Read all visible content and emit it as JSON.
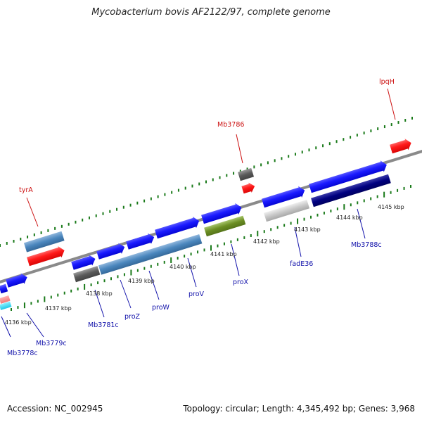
{
  "title": "Mycobacterium bovis AF2122/97, complete genome",
  "footer": {
    "accession": "Accession: NC_002945",
    "summary": "Topology: circular; Length: 4,345,492 bp; Genes: 3,968"
  },
  "colors": {
    "backbone": "#888888",
    "tick": "#1a7a1a",
    "label_red": "#cc1111",
    "label_blue": "#1111aa"
  },
  "axis": {
    "unit": "kbp",
    "ticks": [
      4136,
      4137,
      4138,
      4139,
      4140,
      4141,
      4142,
      4143,
      4144,
      4145
    ]
  },
  "labels": [
    {
      "text": "tyrA",
      "color": "red"
    },
    {
      "text": "Mb3786",
      "color": "red"
    },
    {
      "text": "lpqH",
      "color": "red"
    },
    {
      "text": "Mb3778c",
      "color": "blue"
    },
    {
      "text": "Mb3779c",
      "color": "blue"
    },
    {
      "text": "Mb3781c",
      "color": "blue"
    },
    {
      "text": "proZ",
      "color": "blue"
    },
    {
      "text": "proW",
      "color": "blue"
    },
    {
      "text": "proV",
      "color": "blue"
    },
    {
      "text": "proX",
      "color": "blue"
    },
    {
      "text": "fadE36",
      "color": "blue"
    },
    {
      "text": "Mb3788c",
      "color": "blue"
    }
  ]
}
